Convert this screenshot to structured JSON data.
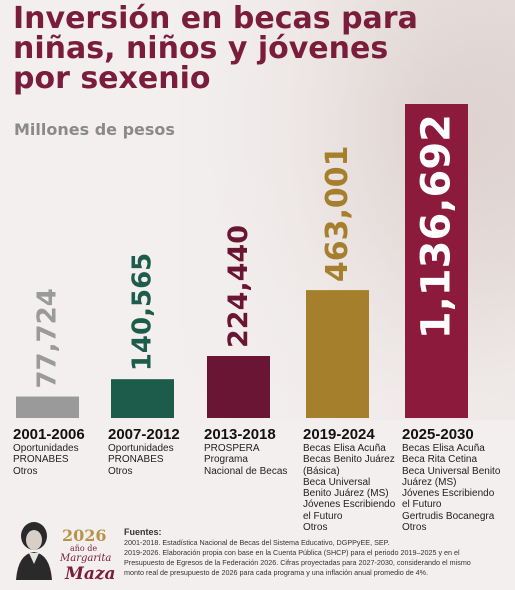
{
  "title_lines": [
    "Inversión en becas para",
    "niñas, niños y jóvenes",
    "por sexenio"
  ],
  "subtitle": "Millones de pesos",
  "colors": {
    "title": "#7a1c3c",
    "bars": [
      "#9a9a9a",
      "#1d5c4b",
      "#6b1534",
      "#a57f2c",
      "#8c1a3c"
    ]
  },
  "chart_data": {
    "type": "bar",
    "title": "Inversión en becas para niñas, niños y jóvenes por sexenio",
    "ylabel": "Millones de pesos",
    "categories": [
      "2001-2006",
      "2007-2012",
      "2013-2018",
      "2019-2024",
      "2025-2030"
    ],
    "values": [
      77724,
      140565,
      224440,
      463001,
      1136692
    ],
    "value_labels": [
      "77,724",
      "140,565",
      "224,440",
      "463,001",
      "1,136,692"
    ],
    "programs": [
      [
        "Oportunidades",
        "PRONABES",
        "Otros"
      ],
      [
        "Oportunidades",
        "PRONABES",
        "Otros"
      ],
      [
        "PROSPERA",
        "Programa",
        "Nacional de Becas"
      ],
      [
        "Becas Elisa Acuña",
        "Becas Benito Juárez",
        "(Básica)",
        "Beca Universal",
        "Benito Juárez (MS)",
        "Jóvenes Escribiendo",
        "el Futuro",
        "Otros"
      ],
      [
        "Becas Elisa Acuña",
        "Beca Rita Cetina",
        "Beca Universal Benito",
        "Juárez (MS)",
        "Jóvenes Escribiendo",
        "el Futuro",
        "Gertrudis Bocanegra",
        "Otros"
      ]
    ],
    "grid": false,
    "legend": "none"
  },
  "logo": {
    "year": "2026",
    "sub": "año de",
    "name1": "Margarita",
    "name2": "Maza"
  },
  "sources": {
    "head": "Fuentes:",
    "lines": [
      "2001-2018. Estadística Nacional de Becas del Sistema Educativo, DGPPyEE, SEP.",
      "2019-2026. Elaboración propia con base en la Cuenta Pública (SHCP) para el periodo 2019–2025 y en el",
      "Presupuesto de Egresos de la Federación 2026. Cifras proyectadas para 2027-2030, considerando el mismo",
      "monto real de presupuesto de 2026 para cada programa y una inflación anual promedio de 4%."
    ]
  }
}
